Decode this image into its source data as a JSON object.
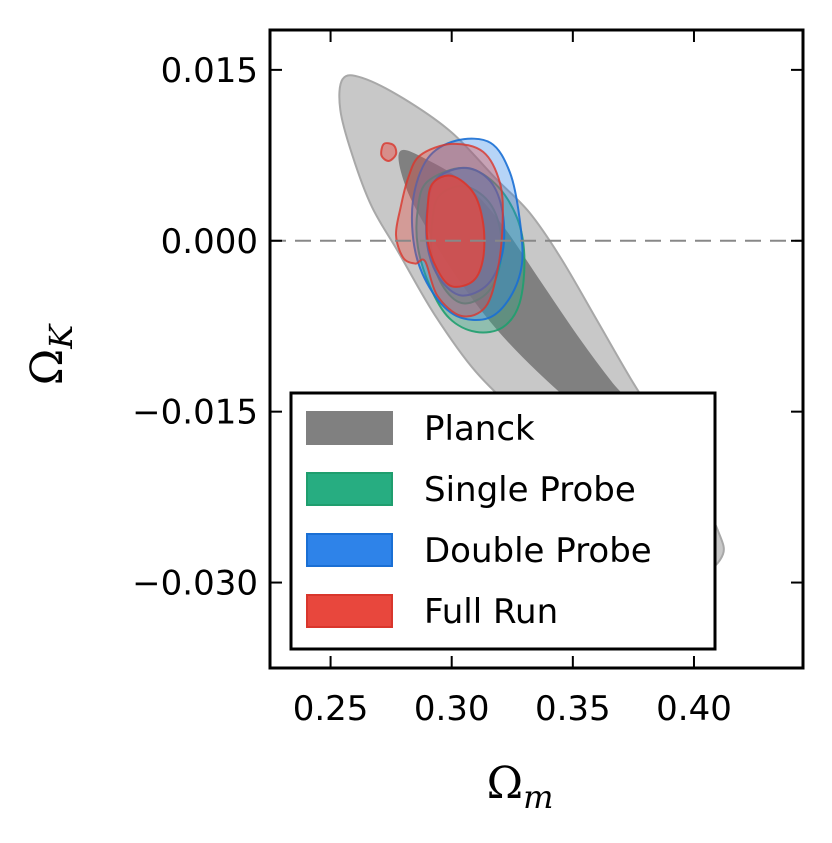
{
  "chart_data": {
    "type": "contour",
    "xlabel": {
      "symbol": "Ω",
      "subscript": "m"
    },
    "ylabel": {
      "symbol": "Ω",
      "subscript": "K"
    },
    "xlim": [
      0.225,
      0.445
    ],
    "ylim": [
      -0.0375,
      0.0185
    ],
    "xticks": [
      {
        "value": 0.25,
        "label": "0.25"
      },
      {
        "value": 0.3,
        "label": "0.30"
      },
      {
        "value": 0.35,
        "label": "0.35"
      },
      {
        "value": 0.4,
        "label": "0.40"
      }
    ],
    "yticks": [
      {
        "value": 0.015,
        "label": "0.015"
      },
      {
        "value": 0.0,
        "label": "0.000"
      },
      {
        "value": -0.015,
        "label": "−0.015"
      },
      {
        "value": -0.03,
        "label": "−0.030"
      }
    ],
    "reference_line": {
      "orientation": "horizontal",
      "value": 0.0,
      "style": "dashed"
    },
    "legend": {
      "position": "lower-left"
    },
    "series": [
      {
        "name": "Planck",
        "colors": {
          "outer": "#c8c8c8",
          "inner": "#808080",
          "edge": "#a8a8a8"
        },
        "outer": [
          [
            0.255,
            0.0142
          ],
          [
            0.263,
            0.0143
          ],
          [
            0.28,
            0.0125
          ],
          [
            0.3,
            0.0095
          ],
          [
            0.318,
            0.0055
          ],
          [
            0.332,
            0.0025
          ],
          [
            0.345,
            -0.0015
          ],
          [
            0.36,
            -0.007
          ],
          [
            0.375,
            -0.0125
          ],
          [
            0.39,
            -0.0175
          ],
          [
            0.402,
            -0.022
          ],
          [
            0.41,
            -0.0255
          ],
          [
            0.412,
            -0.0275
          ],
          [
            0.404,
            -0.029
          ],
          [
            0.394,
            -0.0265
          ],
          [
            0.378,
            -0.023
          ],
          [
            0.355,
            -0.019
          ],
          [
            0.33,
            -0.0155
          ],
          [
            0.31,
            -0.0115
          ],
          [
            0.293,
            -0.0065
          ],
          [
            0.278,
            -0.001
          ],
          [
            0.267,
            0.003
          ],
          [
            0.259,
            0.0075
          ],
          [
            0.254,
            0.0115
          ]
        ],
        "inner": [
          [
            0.279,
            0.0078
          ],
          [
            0.29,
            0.007
          ],
          [
            0.305,
            0.005
          ],
          [
            0.32,
            0.0015
          ],
          [
            0.336,
            -0.0035
          ],
          [
            0.352,
            -0.0085
          ],
          [
            0.366,
            -0.0125
          ],
          [
            0.378,
            -0.0155
          ],
          [
            0.372,
            -0.0172
          ],
          [
            0.356,
            -0.0152
          ],
          [
            0.336,
            -0.0115
          ],
          [
            0.318,
            -0.0075
          ],
          [
            0.302,
            -0.003
          ],
          [
            0.289,
            0.0015
          ],
          [
            0.281,
            0.005
          ]
        ]
      },
      {
        "name": "Single Probe",
        "colors": {
          "fill": "#27ad81",
          "edge": "#1f9e6e"
        },
        "outer": [
          [
            0.29,
            0.0052
          ],
          [
            0.305,
            0.0064
          ],
          [
            0.318,
            0.005
          ],
          [
            0.327,
            0.002
          ],
          [
            0.33,
            -0.0015
          ],
          [
            0.328,
            -0.0055
          ],
          [
            0.321,
            -0.0076
          ],
          [
            0.31,
            -0.008
          ],
          [
            0.299,
            -0.0068
          ],
          [
            0.291,
            -0.004
          ],
          [
            0.286,
            -0.0005
          ],
          [
            0.286,
            0.0028
          ]
        ],
        "inner": [
          [
            0.295,
            0.004
          ],
          [
            0.305,
            0.0048
          ],
          [
            0.315,
            0.0035
          ],
          [
            0.32,
            0.001
          ],
          [
            0.32,
            -0.002
          ],
          [
            0.315,
            -0.0045
          ],
          [
            0.305,
            -0.0055
          ],
          [
            0.297,
            -0.0042
          ],
          [
            0.292,
            -0.0015
          ],
          [
            0.292,
            0.0018
          ]
        ]
      },
      {
        "name": "Double Probe",
        "colors": {
          "fill": "#2e83e9",
          "edge": "#1a6fd4"
        },
        "outer": [
          [
            0.29,
            0.0072
          ],
          [
            0.302,
            0.0088
          ],
          [
            0.316,
            0.0086
          ],
          [
            0.324,
            0.006
          ],
          [
            0.328,
            0.002
          ],
          [
            0.329,
            -0.002
          ],
          [
            0.324,
            -0.005
          ],
          [
            0.315,
            -0.0068
          ],
          [
            0.302,
            -0.0066
          ],
          [
            0.292,
            -0.0045
          ],
          [
            0.285,
            -0.001
          ],
          [
            0.284,
            0.0035
          ]
        ],
        "inner": [
          [
            0.294,
            0.0055
          ],
          [
            0.306,
            0.0064
          ],
          [
            0.316,
            0.0052
          ],
          [
            0.321,
            0.0025
          ],
          [
            0.321,
            -0.001
          ],
          [
            0.315,
            -0.0038
          ],
          [
            0.304,
            -0.0048
          ],
          [
            0.295,
            -0.0033
          ],
          [
            0.29,
            -0.0005
          ],
          [
            0.29,
            0.003
          ]
        ]
      },
      {
        "name": "Full Run",
        "colors": {
          "fill": "#e8473d",
          "edge": "#d9362c"
        },
        "outer": [
          [
            0.287,
            0.0075
          ],
          [
            0.3,
            0.0085
          ],
          [
            0.313,
            0.0078
          ],
          [
            0.32,
            0.005
          ],
          [
            0.321,
            0.0015
          ],
          [
            0.319,
            -0.0025
          ],
          [
            0.314,
            -0.0058
          ],
          [
            0.304,
            -0.0066
          ],
          [
            0.294,
            -0.0048
          ],
          [
            0.289,
            -0.0018
          ],
          [
            0.285,
            -0.002
          ],
          [
            0.28,
            -0.0015
          ],
          [
            0.277,
            0.0005
          ],
          [
            0.279,
            0.003
          ],
          [
            0.282,
            0.0055
          ]
        ],
        "inner": [
          [
            0.292,
            0.005
          ],
          [
            0.3,
            0.0057
          ],
          [
            0.309,
            0.0042
          ],
          [
            0.313,
            0.0015
          ],
          [
            0.313,
            -0.0015
          ],
          [
            0.309,
            -0.0035
          ],
          [
            0.3,
            -0.004
          ],
          [
            0.294,
            -0.0025
          ],
          [
            0.29,
            0.0
          ],
          [
            0.29,
            0.0028
          ]
        ],
        "extra_outer": [
          [
            0.272,
            0.0085
          ],
          [
            0.276,
            0.0084
          ],
          [
            0.277,
            0.0076
          ],
          [
            0.274,
            0.007
          ],
          [
            0.271,
            0.0075
          ]
        ]
      }
    ]
  }
}
